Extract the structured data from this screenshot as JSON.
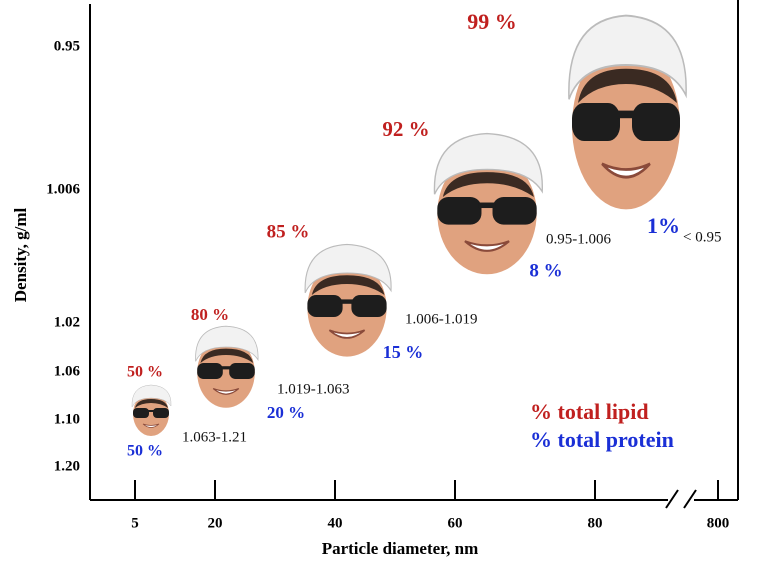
{
  "axes": {
    "y_label": "Density, g/ml",
    "y_ticks": [
      "0.95",
      "1.006",
      "1.02",
      "1.06",
      "1.10",
      "1.20"
    ],
    "x_label": "Particle diameter, nm",
    "x_ticks": [
      "5",
      "20",
      "40",
      "60",
      "80",
      "800"
    ]
  },
  "particles": [
    {
      "lipid": "50 %",
      "protein": "50 %",
      "density": "1.063-1.21"
    },
    {
      "lipid": "80 %",
      "protein": "20 %",
      "density": "1.019-1.063"
    },
    {
      "lipid": "85 %",
      "protein": "15 %",
      "density": "1.006-1.019"
    },
    {
      "lipid": "92 %",
      "protein": "8 %",
      "density": "0.95-1.006"
    },
    {
      "lipid": "99 %",
      "protein": "1%",
      "density": "< 0.95"
    }
  ],
  "legend": {
    "lipid": "% total lipid",
    "protein": "% total protein"
  }
}
